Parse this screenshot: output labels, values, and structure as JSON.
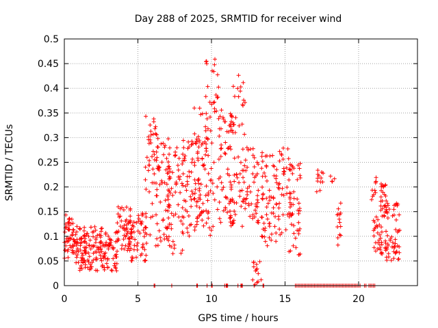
{
  "chart_data": {
    "type": "scatter",
    "title": "Day 288 of 2025, SRMTID for receiver wind",
    "xlabel": "GPS time / hours",
    "ylabel": "SRMTID / TECUs",
    "xlim": [
      0,
      24
    ],
    "ylim": [
      0,
      0.5
    ],
    "x_ticks": [
      {
        "value": 0,
        "label": "0"
      },
      {
        "value": 5,
        "label": "5"
      },
      {
        "value": 10,
        "label": "10"
      },
      {
        "value": 15,
        "label": "15"
      },
      {
        "value": 20,
        "label": "20"
      }
    ],
    "y_ticks": [
      {
        "value": 0,
        "label": "0"
      },
      {
        "value": 0.05,
        "label": "0.05"
      },
      {
        "value": 0.1,
        "label": "0.1"
      },
      {
        "value": 0.15,
        "label": "0.15"
      },
      {
        "value": 0.2,
        "label": "0.2"
      },
      {
        "value": 0.25,
        "label": "0.25"
      },
      {
        "value": 0.3,
        "label": "0.3"
      },
      {
        "value": 0.35,
        "label": "0.35"
      },
      {
        "value": 0.4,
        "label": "0.4"
      },
      {
        "value": 0.45,
        "label": "0.45"
      },
      {
        "value": 0.5,
        "label": "0.5"
      }
    ],
    "grid": true,
    "marker": "+",
    "marker_color": "#ff0000",
    "series": [
      {
        "name": "SRMTID",
        "clusters": [
          {
            "x": [
              0.0,
              0.6
            ],
            "y": [
              0.05,
              0.15
            ],
            "n": 45
          },
          {
            "x": [
              0.6,
              1.5
            ],
            "y": [
              0.04,
              0.12
            ],
            "n": 55
          },
          {
            "x": [
              1.0,
              2.6
            ],
            "y": [
              0.03,
              0.12
            ],
            "n": 80
          },
          {
            "x": [
              2.6,
              3.6
            ],
            "y": [
              0.03,
              0.11
            ],
            "n": 55
          },
          {
            "x": [
              3.6,
              4.6
            ],
            "y": [
              0.07,
              0.16
            ],
            "n": 55
          },
          {
            "x": [
              4.4,
              5.6
            ],
            "y": [
              0.05,
              0.15
            ],
            "n": 55
          },
          {
            "x": [
              5.5,
              6.4
            ],
            "y": [
              0.1,
              0.35
            ],
            "n": 50
          },
          {
            "x": [
              6.2,
              7.2
            ],
            "y": [
              0.08,
              0.3
            ],
            "n": 55
          },
          {
            "x": [
              7.0,
              8.2
            ],
            "y": [
              0.06,
              0.28
            ],
            "n": 60
          },
          {
            "x": [
              8.0,
              9.2
            ],
            "y": [
              0.1,
              0.3
            ],
            "n": 60
          },
          {
            "x": [
              8.8,
              9.8
            ],
            "y": [
              0.12,
              0.36
            ],
            "n": 55
          },
          {
            "x": [
              9.6,
              10.8
            ],
            "y": [
              0.1,
              0.46
            ],
            "n": 70
          },
          {
            "x": [
              10.8,
              11.6
            ],
            "y": [
              0.12,
              0.35
            ],
            "n": 50
          },
          {
            "x": [
              11.3,
              12.3
            ],
            "y": [
              0.12,
              0.43
            ],
            "n": 50
          },
          {
            "x": [
              12.0,
              13.2
            ],
            "y": [
              0.12,
              0.28
            ],
            "n": 50
          },
          {
            "x": [
              12.8,
              13.4
            ],
            "y": [
              0.0,
              0.05
            ],
            "n": 14
          },
          {
            "x": [
              13.4,
              14.4
            ],
            "y": [
              0.08,
              0.27
            ],
            "n": 50
          },
          {
            "x": [
              14.2,
              15.4
            ],
            "y": [
              0.1,
              0.28
            ],
            "n": 55
          },
          {
            "x": [
              15.2,
              16.1
            ],
            "y": [
              0.05,
              0.25
            ],
            "n": 45
          },
          {
            "x": [
              17.1,
              17.6
            ],
            "y": [
              0.19,
              0.24
            ],
            "n": 12
          },
          {
            "x": [
              18.0,
              18.4
            ],
            "y": [
              0.19,
              0.23
            ],
            "n": 4
          },
          {
            "x": [
              18.5,
              18.8
            ],
            "y": [
              0.08,
              0.18
            ],
            "n": 14
          },
          {
            "x": [
              20.8,
              21.2
            ],
            "y": [
              0.17,
              0.22
            ],
            "n": 10
          },
          {
            "x": [
              21.0,
              21.6
            ],
            "y": [
              0.06,
              0.14
            ],
            "n": 30
          },
          {
            "x": [
              21.5,
              21.9
            ],
            "y": [
              0.14,
              0.21
            ],
            "n": 25
          },
          {
            "x": [
              21.8,
              22.8
            ],
            "y": [
              0.05,
              0.17
            ],
            "n": 60
          }
        ],
        "zero_points": [
          6.1,
          6.15,
          7.3,
          9.0,
          9.05,
          9.7,
          10.0,
          10.05,
          10.9,
          11.0,
          11.05,
          11.1,
          11.8,
          12.0,
          12.05,
          12.1,
          12.9,
          13.5,
          13.55,
          15.7,
          15.8,
          15.9,
          16.0,
          16.1,
          16.2,
          16.3,
          16.4,
          16.5,
          16.6,
          16.7,
          16.8,
          16.9,
          17.0,
          17.1,
          17.2,
          17.3,
          17.4,
          17.5,
          17.6,
          17.7,
          17.8,
          17.9,
          18.0,
          18.1,
          18.2,
          18.3,
          18.4,
          18.5,
          18.6,
          18.7,
          18.8,
          18.9,
          19.0,
          19.1,
          19.2,
          19.3,
          19.4,
          19.5,
          19.6,
          19.7,
          19.8,
          19.9,
          20.0,
          20.1,
          20.4,
          20.5,
          20.7,
          20.8,
          20.9,
          21.0,
          21.1
        ]
      }
    ]
  }
}
